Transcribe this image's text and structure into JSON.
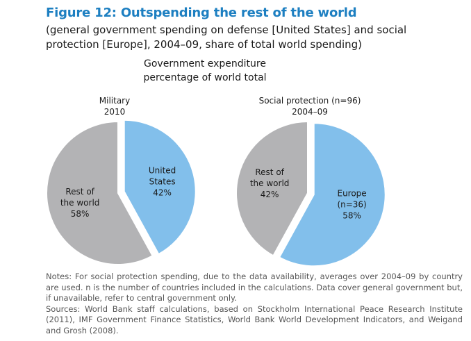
{
  "figure": {
    "title": "Figure 12: Outspending the rest of the world",
    "subtitle": "(general government spending on defense [United States] and social protection [Europe], 2004–09, share of total world spending)"
  },
  "central_title": {
    "line1": "Government expenditure",
    "line2": "percentage of world total"
  },
  "chart_data": [
    {
      "type": "pie",
      "title_line1": "Military",
      "title_line2": "2010",
      "slices": [
        {
          "label_lines": [
            "United",
            "States",
            "42%"
          ],
          "value": 42,
          "color": "#82bfeb",
          "exploded": true
        },
        {
          "label_lines": [
            "Rest of",
            "the world",
            "58%"
          ],
          "value": 58,
          "color": "#b3b3b5",
          "exploded": false
        }
      ]
    },
    {
      "type": "pie",
      "title_line1": "Social protection (n=96)",
      "title_line2": "2004–09",
      "slices": [
        {
          "label_lines": [
            "Europe",
            "(n=36)",
            "58%"
          ],
          "value": 58,
          "color": "#82bfeb",
          "exploded": true
        },
        {
          "label_lines": [
            "Rest of",
            "the world",
            "42%"
          ],
          "value": 42,
          "color": "#b3b3b5",
          "exploded": false
        }
      ]
    }
  ],
  "notes": {
    "notes_text": "Notes: For social protection spending, due to the data availability, averages over 2004–09 by country are used. n is the number of countries included in the calculations. Data cover general government but, if unavailable, refer to central government only.",
    "sources_text": "Sources: World Bank staff calculations, based on Stockholm International Peace Research Institute (2011), IMF Government Finance Statistics, World Bank World Development Indicators, and Weigand and Grosh (2008)."
  }
}
